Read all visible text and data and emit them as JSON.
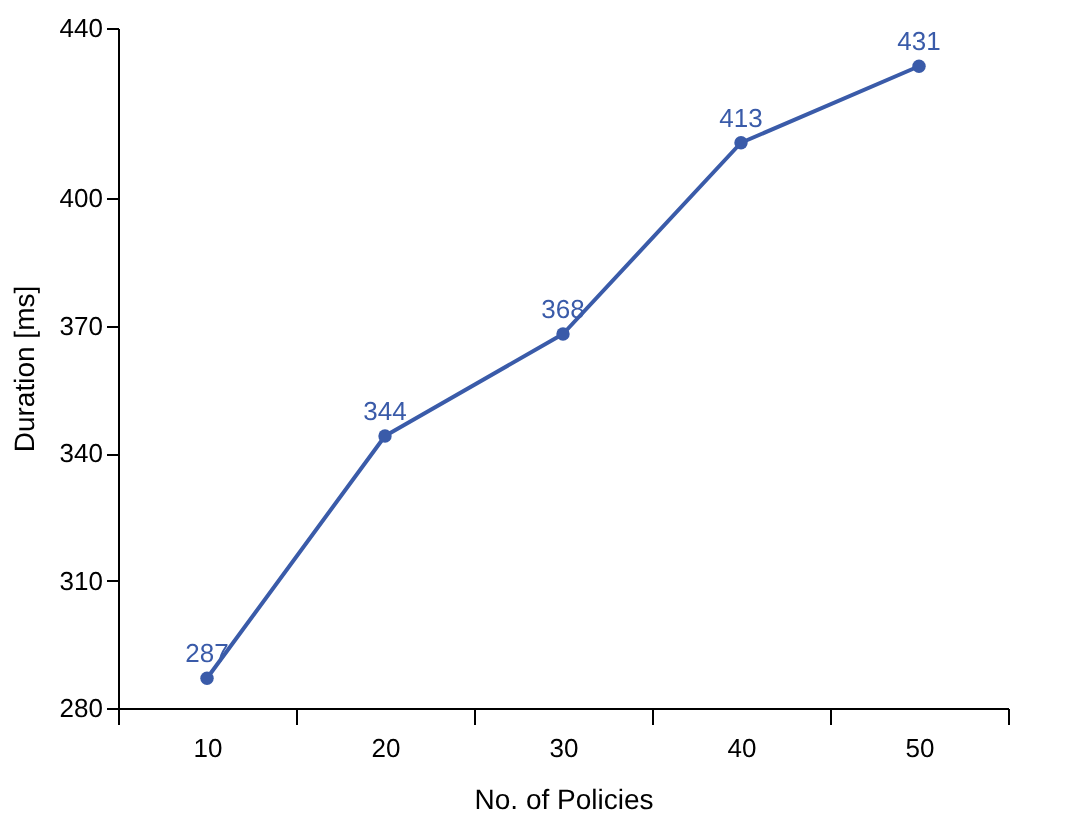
{
  "chart_data": {
    "type": "line",
    "xlabel": "No. of Policies",
    "ylabel": "Duration [ms]",
    "categories": [
      "10",
      "20",
      "30",
      "40",
      "50"
    ],
    "series": [
      {
        "color": "#3a5ba9",
        "values": [
          287,
          344,
          368,
          413,
          431
        ]
      }
    ],
    "ylim": [
      280,
      440
    ],
    "yticks": [
      280,
      310,
      340,
      370,
      400,
      440
    ],
    "data_labels": true,
    "marker": "circle",
    "line_style": "solid",
    "grid": false
  }
}
